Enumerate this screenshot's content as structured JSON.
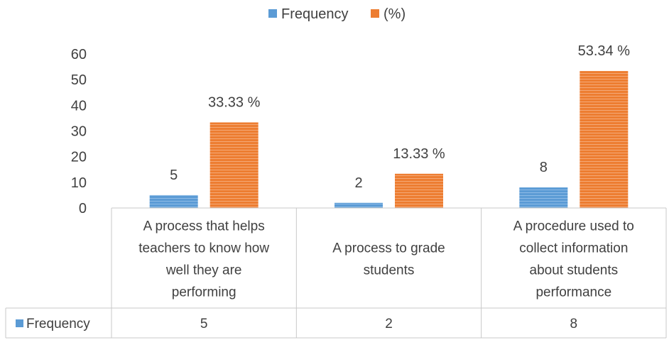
{
  "chart_data": {
    "type": "bar",
    "categories": [
      "A  process that helps teachers to know how well they are performing",
      "A process to grade students",
      "A procedure used to collect information about students performance"
    ],
    "category_lines": [
      [
        "A  process that helps",
        "teachers to know how",
        "well they are",
        "performing"
      ],
      [
        "A process to grade",
        "students"
      ],
      [
        "A procedure used to",
        "collect information",
        "about students",
        "performance"
      ]
    ],
    "series": [
      {
        "name": "Frequency",
        "color": "#5b9bd5",
        "values": [
          5,
          2,
          8
        ],
        "labels": [
          "5",
          "2",
          "8"
        ]
      },
      {
        "name": "(%)",
        "color": "#ed7d31",
        "values": [
          33.33,
          13.33,
          53.34
        ],
        "labels": [
          "33.33 %",
          "13.33 %",
          "53.34 %"
        ]
      }
    ],
    "yticks": [
      "0",
      "10",
      "20",
      "30",
      "40",
      "50",
      "60"
    ],
    "ylim": [
      0,
      60
    ],
    "legend_position": "top-center",
    "data_table": {
      "series_name": "Frequency",
      "values": [
        "5",
        "2",
        "8"
      ]
    }
  }
}
